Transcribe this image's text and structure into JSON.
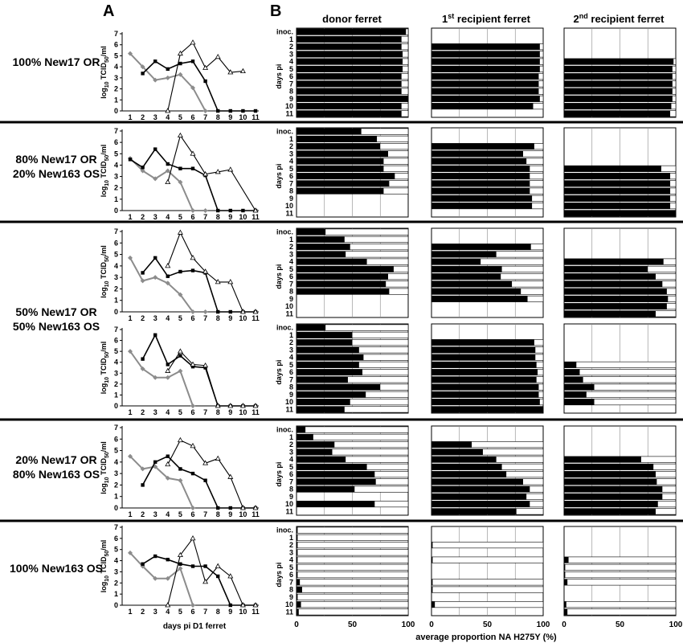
{
  "panel_labels": {
    "a": "A",
    "b": "B"
  },
  "column_headers": {
    "donor": "donor ferret",
    "recipient1_pre": "1",
    "recipient1_sup": "st",
    "recipient1_post": " recipient ferret",
    "recipient2_pre": "2",
    "recipient2_sup": "nd",
    "recipient2_post": " recipient ferret"
  },
  "axis_text": {
    "titer_ylabel_pre": "log",
    "titer_ylabel_sub": "10",
    "titer_ylabel_mid": " TCID",
    "titer_ylabel_sub2": "50",
    "titer_ylabel_post": "/ml",
    "days_pi": "days pi",
    "inoc": "inoc.",
    "xlabel_a": "days pi D1 ferret",
    "xlabel_b": "average proportion NA H275Y (%)"
  },
  "groups": [
    {
      "lines": [
        "100% New17 OR"
      ]
    },
    {
      "lines": [
        "80% New17 OR",
        "20% New163 OS"
      ]
    },
    {
      "lines": [
        "50% New17 OR",
        "50% New163 OS"
      ]
    },
    {
      "lines": [
        "20% New17 OR",
        "80% New163 OS"
      ]
    },
    {
      "lines": [
        "100% New163 OS"
      ]
    }
  ],
  "chart_data": [
    {
      "type": "line",
      "panel": "A",
      "row": 1,
      "x": [
        1,
        2,
        3,
        4,
        5,
        6,
        7,
        8,
        9,
        10,
        11
      ],
      "ylabel": "log10 TCID50/ml",
      "xlabel": "",
      "ylim": [
        0,
        7
      ],
      "yticks": [
        0,
        1,
        2,
        3,
        4,
        5,
        6,
        7
      ],
      "series": [
        {
          "style": "donor",
          "values": [
            5.2,
            4.0,
            2.8,
            3.0,
            3.3,
            2.1,
            0,
            null,
            null,
            null,
            null
          ]
        },
        {
          "style": "recipient1",
          "values": [
            null,
            3.4,
            4.5,
            3.8,
            4.3,
            4.5,
            2.7,
            0,
            0,
            0,
            0
          ]
        },
        {
          "style": "recipient2",
          "values": [
            null,
            null,
            null,
            0,
            5.2,
            6.2,
            3.9,
            4.9,
            3.5,
            3.6,
            null
          ]
        }
      ]
    },
    {
      "type": "line",
      "panel": "A",
      "row": 2,
      "x": [
        1,
        2,
        3,
        4,
        5,
        6,
        7,
        8,
        9,
        10,
        11
      ],
      "ylabel": "log10 TCID50/ml",
      "xlabel": "",
      "ylim": [
        0,
        7
      ],
      "yticks": [
        0,
        1,
        2,
        3,
        4,
        5,
        6,
        7
      ],
      "series": [
        {
          "style": "donor",
          "values": [
            4.6,
            3.5,
            2.8,
            3.5,
            2.5,
            0,
            0,
            null,
            null,
            null,
            null
          ]
        },
        {
          "style": "recipient1",
          "values": [
            4.5,
            3.8,
            5.4,
            4.1,
            3.7,
            3.7,
            3.1,
            0,
            0,
            0,
            0
          ]
        },
        {
          "style": "recipient2",
          "values": [
            null,
            null,
            null,
            2.5,
            6.6,
            5.0,
            3.2,
            3.4,
            3.6,
            null,
            0
          ]
        }
      ]
    },
    {
      "type": "line",
      "panel": "A",
      "row": 3,
      "x": [
        1,
        2,
        3,
        4,
        5,
        6,
        7,
        8,
        9,
        10,
        11
      ],
      "ylabel": "log10 TCID50/ml",
      "xlabel": "",
      "ylim": [
        0,
        7
      ],
      "yticks": [
        0,
        1,
        2,
        3,
        4,
        5,
        6,
        7
      ],
      "series": [
        {
          "style": "donor",
          "values": [
            4.7,
            2.7,
            3.0,
            2.5,
            1.5,
            0,
            0,
            null,
            null,
            null,
            null
          ]
        },
        {
          "style": "recipient1",
          "values": [
            null,
            3.4,
            4.7,
            3.1,
            3.5,
            3.6,
            3.4,
            0,
            0,
            0,
            0
          ]
        },
        {
          "style": "recipient2",
          "values": [
            null,
            null,
            null,
            4.0,
            6.9,
            4.7,
            3.5,
            2.6,
            2.6,
            0,
            0
          ]
        }
      ]
    },
    {
      "type": "line",
      "panel": "A",
      "row": 4,
      "x": [
        1,
        2,
        3,
        4,
        5,
        6,
        7,
        8,
        9,
        10,
        11
      ],
      "ylabel": "log10 TCID50/ml",
      "xlabel": "",
      "ylim": [
        0,
        7
      ],
      "yticks": [
        0,
        1,
        2,
        3,
        4,
        5,
        6,
        7
      ],
      "series": [
        {
          "style": "donor",
          "values": [
            5.0,
            3.4,
            2.6,
            2.6,
            3.2,
            0,
            null,
            null,
            null,
            null,
            null
          ]
        },
        {
          "style": "recipient1",
          "values": [
            null,
            4.3,
            6.5,
            3.8,
            4.6,
            3.6,
            3.5,
            0,
            0,
            0,
            0
          ]
        },
        {
          "style": "recipient2",
          "values": [
            null,
            null,
            null,
            3.2,
            5.0,
            3.8,
            3.7,
            0,
            0,
            0,
            0
          ]
        }
      ]
    },
    {
      "type": "line",
      "panel": "A",
      "row": 5,
      "x": [
        1,
        2,
        3,
        4,
        5,
        6,
        7,
        8,
        9,
        10,
        11
      ],
      "ylabel": "log10 TCID50/ml",
      "xlabel": "",
      "ylim": [
        0,
        7
      ],
      "yticks": [
        0,
        1,
        2,
        3,
        4,
        5,
        6,
        7
      ],
      "series": [
        {
          "style": "donor",
          "values": [
            4.5,
            3.4,
            3.6,
            2.6,
            2.4,
            0,
            null,
            null,
            null,
            null,
            null
          ]
        },
        {
          "style": "recipient1",
          "values": [
            null,
            2.0,
            4.0,
            4.5,
            3.4,
            3.0,
            2.4,
            0,
            0,
            0,
            0
          ]
        },
        {
          "style": "recipient2",
          "values": [
            null,
            null,
            null,
            3.8,
            5.9,
            5.4,
            3.9,
            4.3,
            2.7,
            0,
            0
          ]
        }
      ]
    },
    {
      "type": "line",
      "panel": "A",
      "row": 6,
      "x": [
        1,
        2,
        3,
        4,
        5,
        6,
        7,
        8,
        9,
        10,
        11
      ],
      "ylabel": "log10 TCID50/ml",
      "xlabel": "days pi D1 ferret",
      "ylim": [
        0,
        7
      ],
      "yticks": [
        0,
        1,
        2,
        3,
        4,
        5,
        6,
        7
      ],
      "series": [
        {
          "style": "donor",
          "values": [
            4.7,
            3.5,
            2.4,
            2.4,
            3.3,
            0,
            null,
            null,
            null,
            null,
            null
          ]
        },
        {
          "style": "recipient1",
          "values": [
            null,
            3.7,
            4.4,
            4.1,
            3.7,
            3.5,
            3.5,
            2.6,
            0,
            0,
            0
          ]
        },
        {
          "style": "recipient2",
          "values": [
            null,
            null,
            null,
            0,
            4.5,
            6.0,
            2.1,
            3.5,
            2.6,
            0,
            0
          ]
        }
      ]
    },
    {
      "type": "bar",
      "orientation": "horizontal",
      "panel": "B",
      "row_labels": [
        "inoc.",
        "1",
        "2",
        "3",
        "4",
        "5",
        "6",
        "7",
        "8",
        "9",
        "10",
        "11"
      ],
      "xlim": [
        0,
        100
      ],
      "xticks": [
        0,
        50,
        100
      ],
      "xlabel": "average proportion NA H275Y (%)",
      "ylabel": "days pi",
      "columns": [
        "donor ferret",
        "1st recipient ferret",
        "2nd recipient ferret"
      ],
      "rows": [
        {
          "donor": [
            98,
            94,
            94,
            95,
            95,
            95,
            94,
            94,
            94,
            100,
            94,
            94
          ],
          "recipient1": [
            null,
            null,
            97,
            97,
            97,
            97,
            96,
            96,
            96,
            97,
            91,
            null
          ],
          "recipient2": [
            null,
            null,
            null,
            null,
            98,
            97,
            97,
            97,
            97,
            97,
            96,
            95
          ]
        },
        {
          "donor": [
            58,
            72,
            75,
            82,
            78,
            78,
            88,
            83,
            78,
            null,
            null,
            null
          ],
          "recipient1": [
            null,
            null,
            92,
            82,
            85,
            88,
            88,
            88,
            88,
            90,
            90,
            null
          ],
          "recipient2": [
            null,
            null,
            null,
            null,
            null,
            87,
            95,
            95,
            95,
            95,
            95,
            100
          ]
        },
        {
          "donor": [
            26,
            43,
            48,
            44,
            63,
            87,
            82,
            80,
            83,
            null,
            null,
            null
          ],
          "recipient1": [
            null,
            null,
            89,
            58,
            44,
            63,
            62,
            72,
            80,
            86,
            null,
            null
          ],
          "recipient2": [
            null,
            null,
            null,
            null,
            89,
            75,
            82,
            88,
            92,
            93,
            92,
            82
          ]
        },
        {
          "donor": [
            26,
            50,
            50,
            56,
            60,
            56,
            59,
            46,
            75,
            62,
            48,
            43
          ],
          "recipient1": [
            null,
            null,
            92,
            93,
            93,
            94,
            95,
            94,
            96,
            96,
            97,
            100
          ],
          "recipient2": [
            null,
            null,
            null,
            null,
            null,
            11,
            14,
            17,
            27,
            20,
            27,
            null
          ]
        },
        {
          "donor": [
            8,
            15,
            34,
            32,
            44,
            63,
            70,
            71,
            52,
            null,
            70,
            null
          ],
          "recipient1": [
            null,
            null,
            36,
            46,
            58,
            63,
            67,
            82,
            88,
            85,
            88,
            76
          ],
          "recipient2": [
            null,
            null,
            null,
            null,
            69,
            80,
            82,
            83,
            88,
            88,
            84,
            82
          ]
        },
        {
          "donor": [
            1,
            1,
            1,
            1,
            1,
            1,
            1,
            3,
            5,
            1,
            4,
            2
          ],
          "recipient1": [
            null,
            null,
            1,
            null,
            1,
            null,
            null,
            1,
            1,
            null,
            3,
            null
          ],
          "recipient2": [
            null,
            null,
            null,
            null,
            4,
            1,
            1,
            3,
            null,
            null,
            2,
            3
          ]
        }
      ]
    }
  ]
}
